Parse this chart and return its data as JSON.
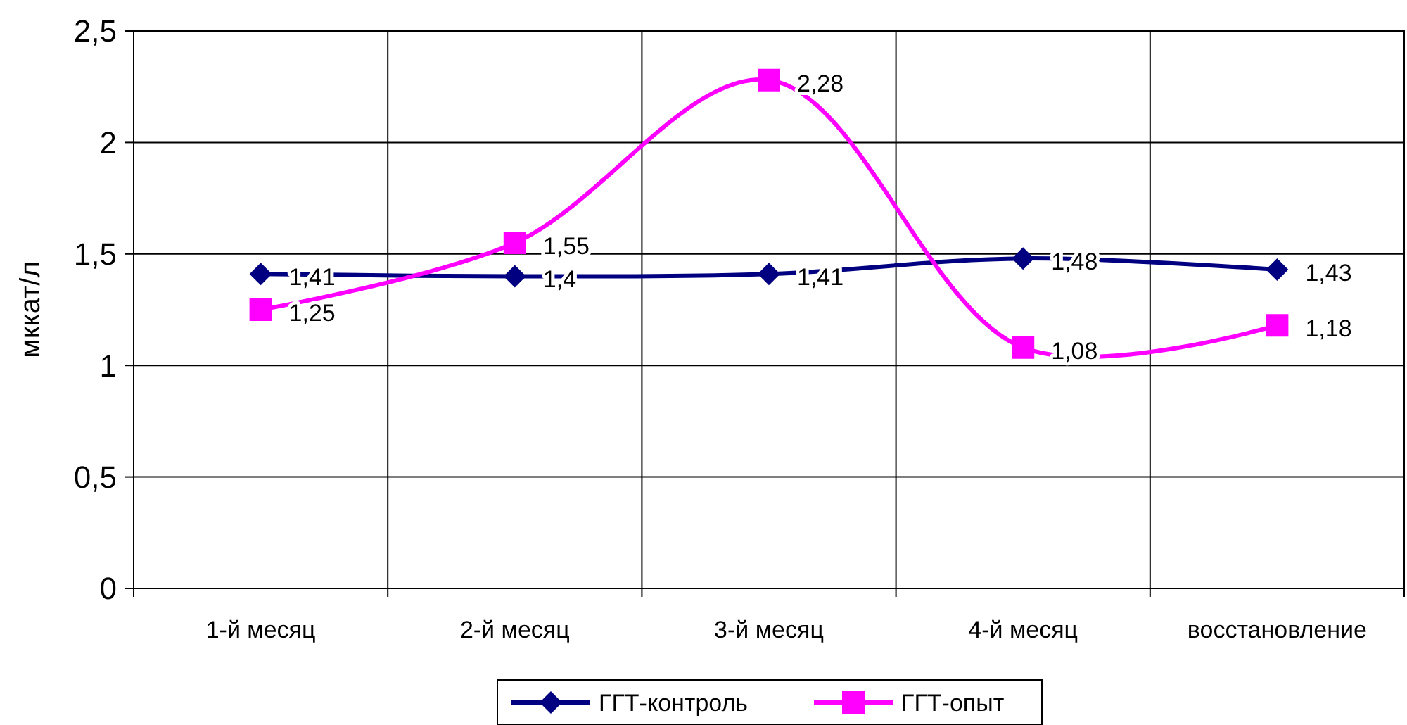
{
  "chart_data": {
    "type": "line",
    "ylabel": "мккат/л",
    "categories": [
      "1-й месяц",
      "2-й месяц",
      "3-й месяц",
      "4-й месяц",
      "восстановление"
    ],
    "ylim": [
      0,
      2.5
    ],
    "yticks": [
      0,
      {
        "value": 0.5,
        "label": "0,5"
      },
      1,
      {
        "value": 1.5,
        "label": "1,5"
      },
      2,
      {
        "value": 2.5,
        "label": "2,5"
      }
    ],
    "grid": true,
    "legend": "bottom",
    "series": [
      {
        "name": "ГГТ-контроль",
        "color": "#000080",
        "marker": "diamond",
        "values": [
          1.41,
          1.4,
          1.41,
          1.48,
          1.43
        ],
        "value_labels": [
          "1,41",
          "1,4",
          "1,41",
          "1,48",
          "1,43"
        ]
      },
      {
        "name": "ГГТ-опыт",
        "color": "#ff00ff",
        "marker": "square",
        "values": [
          1.25,
          1.55,
          2.28,
          1.08,
          1.18
        ],
        "value_labels": [
          "1,25",
          "1,55",
          "2,28",
          "1,08",
          "1,18"
        ]
      }
    ]
  }
}
